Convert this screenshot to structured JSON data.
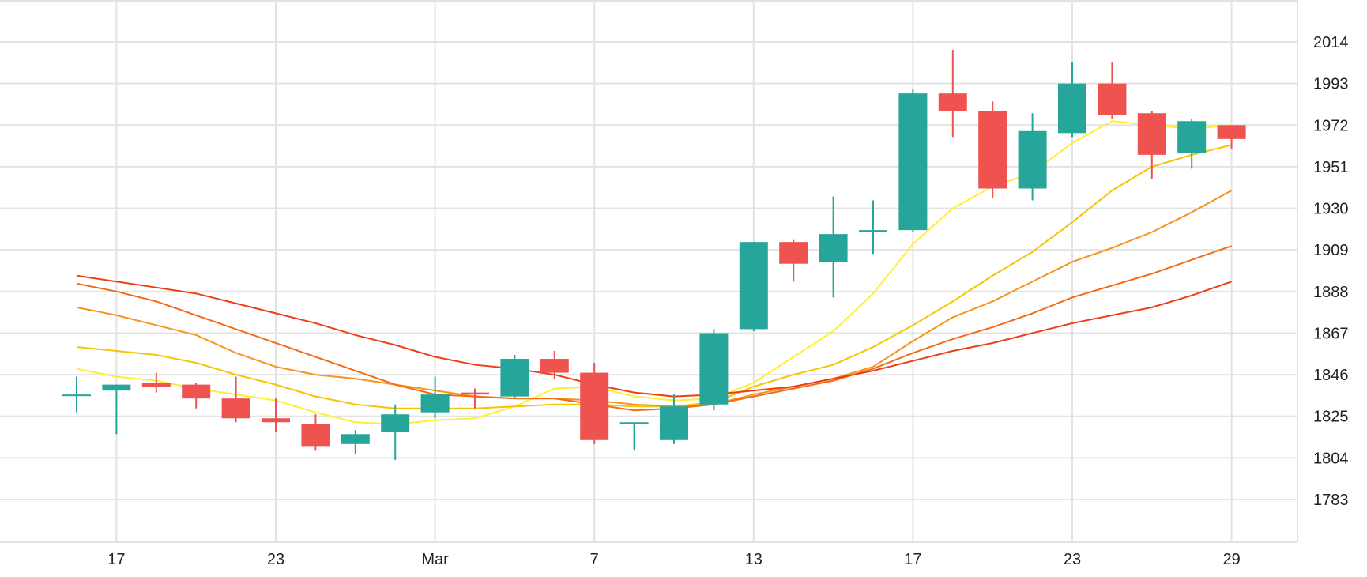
{
  "chart_data": {
    "type": "candlestick",
    "title": "",
    "xlabel": "",
    "ylabel": "",
    "ylim": [
      1762,
      2028
    ],
    "y_ticks": [
      2014,
      1993,
      1972,
      1951,
      1930,
      1909,
      1888,
      1867,
      1846,
      1825,
      1804,
      1783
    ],
    "x_ticks": [
      "17",
      "23",
      "Mar",
      "7",
      "13",
      "17",
      "23",
      "29"
    ],
    "grid": true,
    "legend": "none",
    "colors": {
      "up": "#26a69a",
      "down": "#ef5350",
      "ma_colors": [
        "#ffee33",
        "#f7c400",
        "#f7931a",
        "#f46b12",
        "#ef3d14",
        "#e8280f"
      ]
    },
    "candles": [
      {
        "open": 1836,
        "high": 1845,
        "low": 1827,
        "close": 1836
      },
      {
        "open": 1838,
        "high": 1841,
        "low": 1816,
        "close": 1841
      },
      {
        "open": 1842,
        "high": 1847,
        "low": 1837,
        "close": 1840
      },
      {
        "open": 1841,
        "high": 1842,
        "low": 1829,
        "close": 1834
      },
      {
        "open": 1834,
        "high": 1845,
        "low": 1822,
        "close": 1824
      },
      {
        "open": 1824,
        "high": 1834,
        "low": 1817,
        "close": 1822
      },
      {
        "open": 1821,
        "high": 1826,
        "low": 1808,
        "close": 1810
      },
      {
        "open": 1811,
        "high": 1818,
        "low": 1806,
        "close": 1816
      },
      {
        "open": 1817,
        "high": 1831,
        "low": 1803,
        "close": 1826
      },
      {
        "open": 1827,
        "high": 1845,
        "low": 1824,
        "close": 1836
      },
      {
        "open": 1837,
        "high": 1839,
        "low": 1829,
        "close": 1836
      },
      {
        "open": 1835,
        "high": 1856,
        "low": 1834,
        "close": 1854
      },
      {
        "open": 1854,
        "high": 1858,
        "low": 1844,
        "close": 1847
      },
      {
        "open": 1847,
        "high": 1852,
        "low": 1811,
        "close": 1813
      },
      {
        "open": 1822,
        "high": 1822,
        "low": 1808,
        "close": 1822
      },
      {
        "open": 1813,
        "high": 1836,
        "low": 1811,
        "close": 1830
      },
      {
        "open": 1831,
        "high": 1869,
        "low": 1828,
        "close": 1867
      },
      {
        "open": 1869,
        "high": 1913,
        "low": 1868,
        "close": 1913
      },
      {
        "open": 1913,
        "high": 1914,
        "low": 1893,
        "close": 1902
      },
      {
        "open": 1903,
        "high": 1936,
        "low": 1885,
        "close": 1917
      },
      {
        "open": 1919,
        "high": 1934,
        "low": 1907,
        "close": 1919
      },
      {
        "open": 1919,
        "high": 1990,
        "low": 1918,
        "close": 1988
      },
      {
        "open": 1988,
        "high": 2010,
        "low": 1966,
        "close": 1979
      },
      {
        "open": 1979,
        "high": 1984,
        "low": 1935,
        "close": 1940
      },
      {
        "open": 1940,
        "high": 1978,
        "low": 1934,
        "close": 1969
      },
      {
        "open": 1968,
        "high": 2004,
        "low": 1966,
        "close": 1993
      },
      {
        "open": 1993,
        "high": 2004,
        "low": 1975,
        "close": 1977
      },
      {
        "open": 1978,
        "high": 1979,
        "low": 1945,
        "close": 1957
      },
      {
        "open": 1958,
        "high": 1975,
        "low": 1950,
        "close": 1974
      },
      {
        "open": 1972,
        "high": 1972,
        "low": 1960,
        "close": 1965
      }
    ],
    "moving_averages": [
      {
        "values": [
          1849,
          1845,
          1843,
          1839,
          1836,
          1833,
          1827,
          1822,
          1821,
          1823,
          1824,
          1830,
          1839,
          1840,
          1835,
          1833,
          1834,
          1842,
          1855,
          1868,
          1887,
          1912,
          1930,
          1941,
          1948,
          1963,
          1974,
          1972,
          1970,
          1972
        ]
      },
      {
        "values": [
          1860,
          1858,
          1856,
          1852,
          1846,
          1841,
          1835,
          1831,
          1829,
          1829,
          1829,
          1830,
          1831,
          1831,
          1830,
          1830,
          1832,
          1840,
          1846,
          1851,
          1860,
          1871,
          1883,
          1896,
          1908,
          1923,
          1939,
          1951,
          1957,
          1962
        ]
      },
      {
        "values": [
          1880,
          1876,
          1871,
          1866,
          1857,
          1850,
          1846,
          1844,
          1841,
          1838,
          1835,
          1834,
          1834,
          1833,
          1831,
          1830,
          1831,
          1836,
          1840,
          1844,
          1850,
          1863,
          1875,
          1883,
          1893,
          1903,
          1910,
          1918,
          1928,
          1939
        ]
      },
      {
        "values": [
          1892,
          1888,
          1883,
          1876,
          1869,
          1862,
          1855,
          1848,
          1841,
          1836,
          1835,
          1834,
          1834,
          1831,
          1828,
          1829,
          1831,
          1835,
          1839,
          1843,
          1849,
          1857,
          1864,
          1870,
          1877,
          1885,
          1891,
          1897,
          1904,
          1911
        ]
      },
      {
        "values": [
          1896,
          1893,
          1890,
          1887,
          1882,
          1877,
          1872,
          1866,
          1861,
          1855,
          1851,
          1849,
          1846,
          1841,
          1837,
          1835,
          1836,
          1838,
          1840,
          1844,
          1848,
          1853,
          1858,
          1862,
          1867,
          1872,
          1876,
          1880,
          1886,
          1893
        ]
      },
      {
        "values": [
          null,
          null,
          null,
          null,
          null,
          null,
          null,
          null,
          null,
          null,
          null,
          null,
          null,
          null,
          null,
          null,
          null,
          null,
          null,
          null,
          null,
          null,
          null,
          null,
          null,
          null,
          null,
          null,
          null,
          null
        ]
      }
    ]
  }
}
